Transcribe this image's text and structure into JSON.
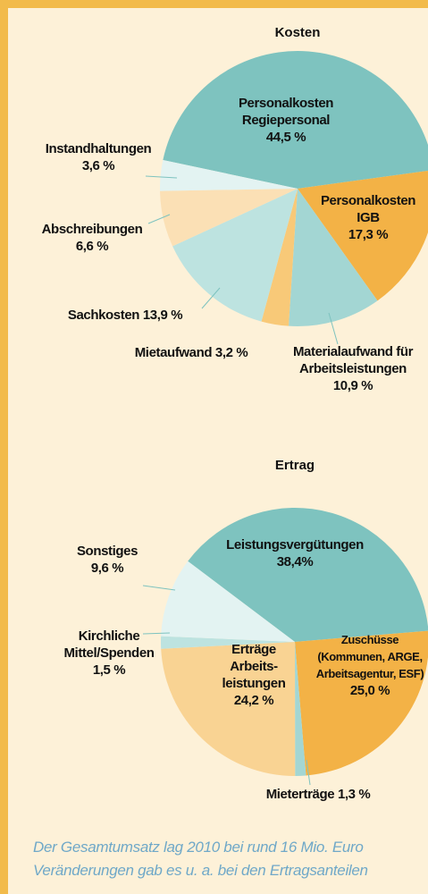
{
  "chart_data": [
    {
      "type": "pie",
      "title": "Kosten",
      "categories": [
        "Personalkosten Regiepersonal",
        "Personalkosten IGB",
        "Materialaufwand für Arbeitsleistungen",
        "Mietaufwand",
        "Sachkosten",
        "Abschreibungen",
        "Instandhaltungen"
      ],
      "values": [
        44.5,
        17.3,
        10.9,
        3.2,
        13.9,
        6.6,
        3.6
      ],
      "value_labels": [
        "44,5 %",
        "17,3 %",
        "10,9 %",
        "3,2 %",
        "13,9 %",
        "6,6 %",
        "3,6 %"
      ],
      "colors": [
        "#7ec3bf",
        "#f3b246",
        "#a3d6d3",
        "#f8c978",
        "#bde3e0",
        "#fbe0b5",
        "#e3f3f2"
      ]
    },
    {
      "type": "pie",
      "title": "Ertrag",
      "categories": [
        "Leistungsvergütungen",
        "Zuschüsse (Kommunen, ARGE, Arbeitsagentur, ESF)",
        "Mieterträge",
        "Erträge Arbeits-leistungen",
        "Kirchliche Mittel/Spenden",
        "Sonstiges"
      ],
      "values": [
        38.4,
        25.0,
        1.3,
        24.2,
        1.5,
        9.6
      ],
      "value_labels": [
        "38,4%",
        "25,0 %",
        "1,3 %",
        "24,2 %",
        "1,5 %",
        "9,6 %"
      ],
      "colors": [
        "#7ec3bf",
        "#f3b246",
        "#a3d6d3",
        "#f9d393",
        "#bde3e0",
        "#e3f3f2"
      ]
    }
  ],
  "footnote": [
    "Der Gesamtumsatz lag 2010 bei rund 16 Mio. Euro",
    "Veränderungen gab es u. a. bei den Ertragsanteilen"
  ]
}
